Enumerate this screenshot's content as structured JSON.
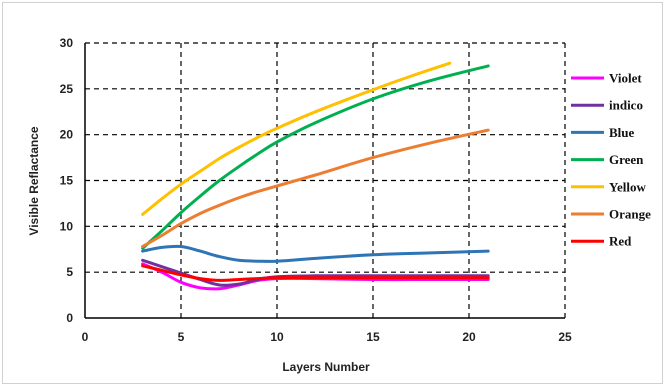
{
  "chart_data": {
    "type": "line",
    "title": "",
    "xlabel": "Layers Number",
    "ylabel": "Visible Reflactance",
    "xlim": [
      0,
      25
    ],
    "ylim": [
      0,
      30
    ],
    "xticks": [
      0,
      5,
      10,
      15,
      20,
      25
    ],
    "yticks": [
      0,
      5,
      10,
      15,
      20,
      25,
      30
    ],
    "grid": "dashed",
    "legend": "right",
    "series": [
      {
        "name": "Violet",
        "color": "#ff00ff",
        "x": [
          3,
          4,
          5,
          6,
          7,
          8,
          9,
          10,
          12,
          15,
          18,
          21
        ],
        "y": [
          5.9,
          5.0,
          3.9,
          3.3,
          3.2,
          3.6,
          4.1,
          4.3,
          4.3,
          4.2,
          4.2,
          4.2
        ]
      },
      {
        "name": "indico",
        "color": "#7030a0",
        "x": [
          3,
          4,
          5,
          6,
          7,
          8,
          9,
          10,
          12,
          15,
          18,
          21
        ],
        "y": [
          6.3,
          5.6,
          4.9,
          4.2,
          3.6,
          3.7,
          4.2,
          4.5,
          4.6,
          4.6,
          4.6,
          4.6
        ]
      },
      {
        "name": "Blue",
        "color": "#2e75b6",
        "x": [
          3,
          4,
          5,
          6,
          7,
          8,
          9,
          10,
          12,
          15,
          18,
          21
        ],
        "y": [
          7.3,
          7.7,
          7.8,
          7.3,
          6.7,
          6.3,
          6.2,
          6.2,
          6.5,
          6.9,
          7.1,
          7.3
        ]
      },
      {
        "name": "Green",
        "color": "#00b050",
        "x": [
          3,
          4,
          5,
          6,
          7,
          8,
          9,
          10,
          12,
          15,
          18,
          21
        ],
        "y": [
          7.6,
          9.5,
          11.5,
          13.3,
          15.0,
          16.5,
          17.9,
          19.2,
          21.3,
          23.9,
          25.9,
          27.5
        ]
      },
      {
        "name": "Yellow",
        "color": "#ffc000",
        "x": [
          3,
          4,
          5,
          6,
          7,
          8,
          9,
          10,
          12,
          15,
          17,
          19
        ],
        "y": [
          11.3,
          13.0,
          14.6,
          16.0,
          17.4,
          18.6,
          19.7,
          20.7,
          22.5,
          24.9,
          26.4,
          27.8
        ]
      },
      {
        "name": "Orange",
        "color": "#ed7d31",
        "x": [
          3,
          4,
          5,
          6,
          7,
          8,
          9,
          10,
          12,
          15,
          18,
          21
        ],
        "y": [
          7.8,
          9.0,
          10.3,
          11.4,
          12.3,
          13.1,
          13.8,
          14.4,
          15.6,
          17.5,
          19.1,
          20.5
        ]
      },
      {
        "name": "Red",
        "color": "#ff0000",
        "x": [
          3,
          4,
          5,
          6,
          7,
          8,
          9,
          10,
          12,
          15,
          18,
          21
        ],
        "y": [
          5.7,
          5.2,
          4.7,
          4.3,
          4.1,
          4.2,
          4.3,
          4.4,
          4.4,
          4.4,
          4.4,
          4.4
        ]
      }
    ]
  }
}
